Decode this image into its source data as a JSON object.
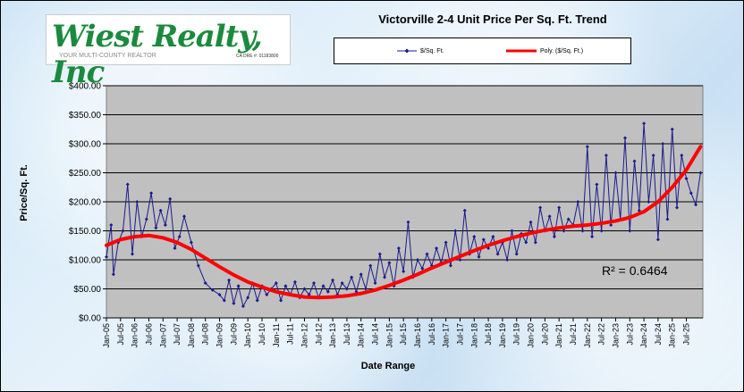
{
  "logo": {
    "name": "Wiest Realty, Inc",
    "tagline": "YOUR MULTI-COUNTY REALTOR",
    "license": "CA DRE #: 01183800"
  },
  "colors": {
    "plot_bg": "#c0c0c0",
    "series": "#1a1a8c",
    "trend": "#ff0000",
    "brand": "#1b8a3e"
  },
  "chart_data": {
    "type": "line",
    "title": "Victorville 2-4 Unit Price Per Sq. Ft. Trend",
    "xlabel": "Date Range",
    "ylabel": "Price/Sq. Ft.",
    "ylim": [
      0,
      400
    ],
    "yticks": [
      "$0.00",
      "$50.00",
      "$100.00",
      "$150.00",
      "$200.00",
      "$250.00",
      "$300.00",
      "$350.00",
      "$400.00"
    ],
    "xticks": [
      "Jan-05",
      "Jul-05",
      "Jan-06",
      "Jul-06",
      "Jan-07",
      "Jul-07",
      "Jan-08",
      "Jul-08",
      "Jan-09",
      "Jul-09",
      "Jan-10",
      "Jul-10",
      "Jan-11",
      "Jul-11",
      "Jan-12",
      "Jul-12",
      "Jan-13",
      "Jul-13",
      "Jan-14",
      "Jul-14",
      "Jan-15",
      "Jul-15",
      "Jan-16",
      "Jul-16",
      "Jan-17",
      "Jul-17",
      "Jan-18",
      "Jul-18",
      "Jan-19",
      "Jul-19",
      "Jan-20",
      "Jul-20",
      "Jan-21",
      "Jul-21",
      "Jan-22",
      "Jul-22",
      "Jan-23",
      "Jul-23",
      "Jan-24",
      "Jul-24",
      "Jan-25",
      "Jul-25"
    ],
    "grid": true,
    "legend": "top",
    "annotation": "R² = 0.6464",
    "series": [
      {
        "name": "$/Sq. Ft.",
        "points": [
          [
            "2005-01",
            105
          ],
          [
            "2005-03",
            160
          ],
          [
            "2005-04",
            75
          ],
          [
            "2005-06",
            130
          ],
          [
            "2005-08",
            150
          ],
          [
            "2005-10",
            230
          ],
          [
            "2005-12",
            110
          ],
          [
            "2006-02",
            200
          ],
          [
            "2006-04",
            140
          ],
          [
            "2006-06",
            170
          ],
          [
            "2006-08",
            215
          ],
          [
            "2006-10",
            155
          ],
          [
            "2006-12",
            185
          ],
          [
            "2007-02",
            160
          ],
          [
            "2007-04",
            205
          ],
          [
            "2007-06",
            120
          ],
          [
            "2007-08",
            140
          ],
          [
            "2007-10",
            175
          ],
          [
            "2008-01",
            130
          ],
          [
            "2008-04",
            90
          ],
          [
            "2008-07",
            60
          ],
          [
            "2008-10",
            48
          ],
          [
            "2009-01",
            40
          ],
          [
            "2009-03",
            30
          ],
          [
            "2009-05",
            65
          ],
          [
            "2009-07",
            25
          ],
          [
            "2009-09",
            55
          ],
          [
            "2009-11",
            20
          ],
          [
            "2010-01",
            35
          ],
          [
            "2010-03",
            60
          ],
          [
            "2010-05",
            30
          ],
          [
            "2010-07",
            55
          ],
          [
            "2010-09",
            40
          ],
          [
            "2010-11",
            50
          ],
          [
            "2011-01",
            60
          ],
          [
            "2011-03",
            30
          ],
          [
            "2011-05",
            55
          ],
          [
            "2011-07",
            40
          ],
          [
            "2011-09",
            62
          ],
          [
            "2011-11",
            35
          ],
          [
            "2012-01",
            50
          ],
          [
            "2012-03",
            40
          ],
          [
            "2012-05",
            60
          ],
          [
            "2012-07",
            35
          ],
          [
            "2012-09",
            55
          ],
          [
            "2012-11",
            45
          ],
          [
            "2013-01",
            65
          ],
          [
            "2013-03",
            40
          ],
          [
            "2013-05",
            60
          ],
          [
            "2013-07",
            50
          ],
          [
            "2013-09",
            70
          ],
          [
            "2013-11",
            45
          ],
          [
            "2014-01",
            75
          ],
          [
            "2014-03",
            50
          ],
          [
            "2014-05",
            90
          ],
          [
            "2014-07",
            60
          ],
          [
            "2014-09",
            110
          ],
          [
            "2014-11",
            70
          ],
          [
            "2015-01",
            95
          ],
          [
            "2015-03",
            55
          ],
          [
            "2015-05",
            120
          ],
          [
            "2015-07",
            80
          ],
          [
            "2015-09",
            165
          ],
          [
            "2015-11",
            70
          ],
          [
            "2016-01",
            100
          ],
          [
            "2016-03",
            85
          ],
          [
            "2016-05",
            110
          ],
          [
            "2016-07",
            90
          ],
          [
            "2016-09",
            120
          ],
          [
            "2016-11",
            95
          ],
          [
            "2017-01",
            130
          ],
          [
            "2017-03",
            90
          ],
          [
            "2017-05",
            150
          ],
          [
            "2017-07",
            100
          ],
          [
            "2017-09",
            185
          ],
          [
            "2017-11",
            110
          ],
          [
            "2018-01",
            140
          ],
          [
            "2018-03",
            105
          ],
          [
            "2018-05",
            135
          ],
          [
            "2018-07",
            120
          ],
          [
            "2018-09",
            140
          ],
          [
            "2018-11",
            110
          ],
          [
            "2019-01",
            130
          ],
          [
            "2019-03",
            100
          ],
          [
            "2019-05",
            150
          ],
          [
            "2019-07",
            110
          ],
          [
            "2019-09",
            145
          ],
          [
            "2019-11",
            130
          ],
          [
            "2020-01",
            165
          ],
          [
            "2020-03",
            130
          ],
          [
            "2020-05",
            190
          ],
          [
            "2020-07",
            150
          ],
          [
            "2020-09",
            175
          ],
          [
            "2020-11",
            140
          ],
          [
            "2021-01",
            190
          ],
          [
            "2021-03",
            150
          ],
          [
            "2021-05",
            170
          ],
          [
            "2021-07",
            160
          ],
          [
            "2021-09",
            200
          ],
          [
            "2021-11",
            150
          ],
          [
            "2022-01",
            295
          ],
          [
            "2022-03",
            140
          ],
          [
            "2022-05",
            230
          ],
          [
            "2022-07",
            150
          ],
          [
            "2022-09",
            280
          ],
          [
            "2022-11",
            160
          ],
          [
            "2023-01",
            250
          ],
          [
            "2023-03",
            170
          ],
          [
            "2023-05",
            310
          ],
          [
            "2023-07",
            150
          ],
          [
            "2023-09",
            270
          ],
          [
            "2023-11",
            185
          ],
          [
            "2024-01",
            335
          ],
          [
            "2024-03",
            200
          ],
          [
            "2024-05",
            280
          ],
          [
            "2024-07",
            135
          ],
          [
            "2024-09",
            300
          ],
          [
            "2024-11",
            170
          ],
          [
            "2025-01",
            325
          ],
          [
            "2025-03",
            190
          ],
          [
            "2025-05",
            280
          ],
          [
            "2025-07",
            240
          ],
          [
            "2025-09",
            215
          ],
          [
            "2025-11",
            195
          ],
          [
            "2026-01",
            250
          ]
        ]
      },
      {
        "name": "Poly. ($/Sq. Ft.)",
        "points": [
          [
            "2005-01",
            125
          ],
          [
            "2005-07",
            135
          ],
          [
            "2006-01",
            140
          ],
          [
            "2006-07",
            142
          ],
          [
            "2007-01",
            138
          ],
          [
            "2007-07",
            130
          ],
          [
            "2008-01",
            118
          ],
          [
            "2008-07",
            103
          ],
          [
            "2009-01",
            88
          ],
          [
            "2009-07",
            74
          ],
          [
            "2010-01",
            62
          ],
          [
            "2010-07",
            53
          ],
          [
            "2011-01",
            45
          ],
          [
            "2011-07",
            40
          ],
          [
            "2012-01",
            36
          ],
          [
            "2012-07",
            35
          ],
          [
            "2013-01",
            36
          ],
          [
            "2013-07",
            38
          ],
          [
            "2014-01",
            42
          ],
          [
            "2014-07",
            48
          ],
          [
            "2015-01",
            56
          ],
          [
            "2015-07",
            65
          ],
          [
            "2016-01",
            75
          ],
          [
            "2016-07",
            86
          ],
          [
            "2017-01",
            96
          ],
          [
            "2017-07",
            106
          ],
          [
            "2018-01",
            116
          ],
          [
            "2018-07",
            125
          ],
          [
            "2019-01",
            133
          ],
          [
            "2019-07",
            140
          ],
          [
            "2020-01",
            146
          ],
          [
            "2020-07",
            151
          ],
          [
            "2021-01",
            155
          ],
          [
            "2021-07",
            158
          ],
          [
            "2022-01",
            160
          ],
          [
            "2022-07",
            163
          ],
          [
            "2023-01",
            167
          ],
          [
            "2023-07",
            173
          ],
          [
            "2024-01",
            183
          ],
          [
            "2024-07",
            200
          ],
          [
            "2025-01",
            225
          ],
          [
            "2025-07",
            255
          ],
          [
            "2026-01",
            295
          ]
        ]
      }
    ]
  }
}
